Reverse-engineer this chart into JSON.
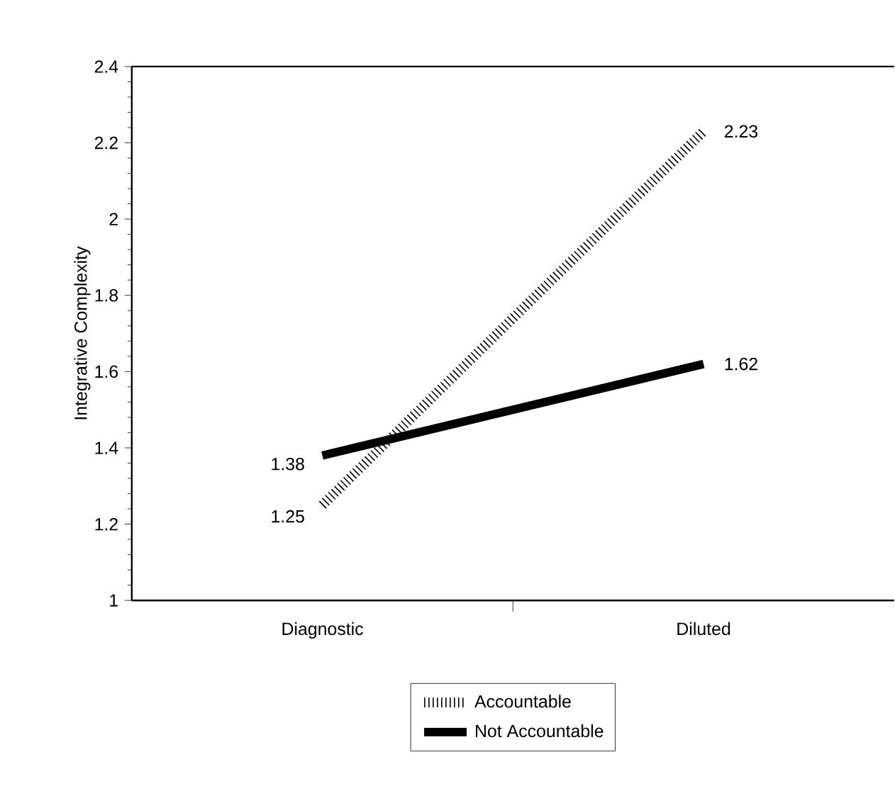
{
  "chart_data": {
    "type": "line",
    "ylabel": "Integrative Complexity",
    "categories": [
      "Diagnostic",
      "Diluted"
    ],
    "series": [
      {
        "name": "Accountable",
        "color": "#000000",
        "values": [
          1.25,
          2.23
        ],
        "line_style": "dotted"
      },
      {
        "name": "Not Accountable",
        "color": "#000000",
        "values": [
          1.38,
          1.62
        ],
        "line_style": "solid"
      }
    ],
    "ylim": [
      1,
      2.4
    ],
    "yticks": [
      1,
      1.2,
      1.4,
      1.6,
      1.8,
      2,
      2.2,
      2.4
    ],
    "data_labels": true,
    "legend": "bottom",
    "grid": false,
    "marker": "none"
  }
}
